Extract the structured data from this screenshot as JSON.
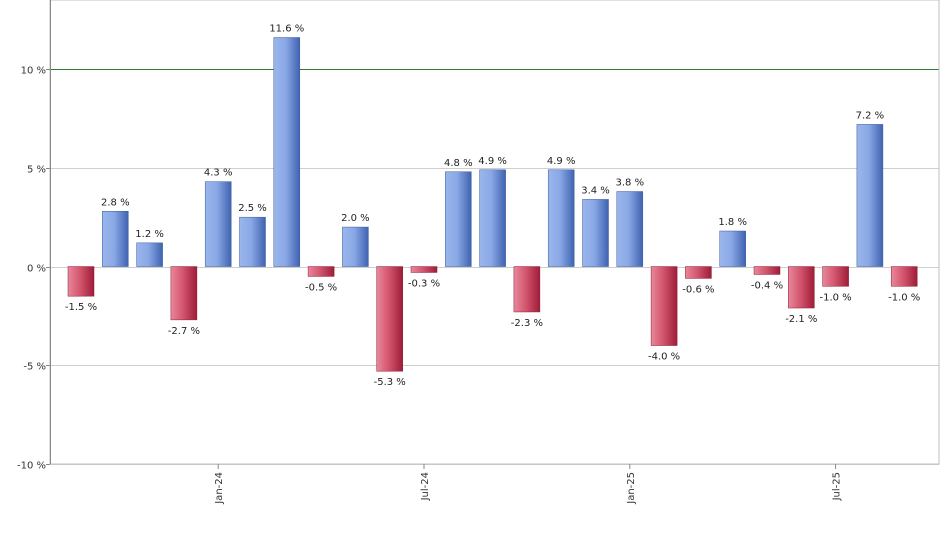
{
  "chart_data": {
    "type": "bar",
    "ylim": [
      -10,
      13.5
    ],
    "yticks": [
      {
        "value": 10,
        "label": "10 %"
      },
      {
        "value": 5,
        "label": "5 %"
      },
      {
        "value": 0,
        "label": "0 %"
      },
      {
        "value": -5,
        "label": "-5 %"
      },
      {
        "value": -10,
        "label": "-10 %"
      }
    ],
    "grid": true,
    "reference_line": {
      "value": 10,
      "color": "#2e7d32"
    },
    "colors": {
      "positive": "#6b8fd6",
      "negative": "#c9304f"
    },
    "values": [
      -1.5,
      2.8,
      1.2,
      -2.7,
      4.3,
      2.5,
      11.6,
      -0.5,
      2.0,
      -5.3,
      -0.3,
      4.8,
      4.9,
      -2.3,
      4.9,
      3.4,
      3.8,
      -4.0,
      -0.6,
      1.8,
      -0.4,
      -2.1,
      -1.0,
      7.2,
      -1.0
    ],
    "labels": [
      "-1.5 %",
      "2.8 %",
      "1.2 %",
      "-2.7 %",
      "4.3 %",
      "2.5 %",
      "11.6 %",
      "-0.5 %",
      "2.0 %",
      "-5.3 %",
      "-0.3 %",
      "4.8 %",
      "4.9 %",
      "-2.3 %",
      "4.9 %",
      "3.4 %",
      "3.8 %",
      "-4.0 %",
      "-0.6 %",
      "1.8 %",
      "-0.4 %",
      "-2.1 %",
      "-1.0 %",
      "7.2 %",
      "-1.0 %"
    ],
    "xtick_labels": [
      {
        "index": 4,
        "label": "Jan-24"
      },
      {
        "index": 10,
        "label": "Jul-24"
      },
      {
        "index": 16,
        "label": "Jan-25"
      },
      {
        "index": 22,
        "label": "Jul-25"
      }
    ]
  }
}
